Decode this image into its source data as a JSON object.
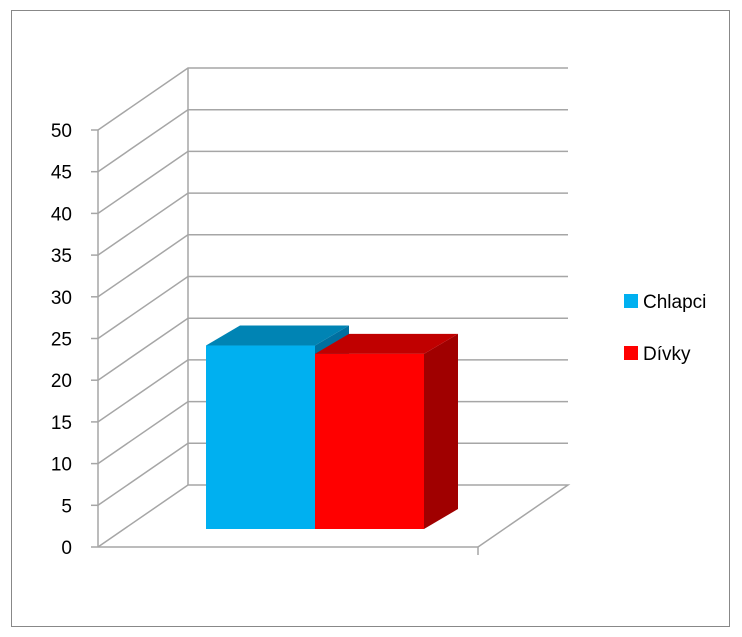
{
  "chart_data": {
    "type": "bar",
    "categories": [
      ""
    ],
    "series": [
      {
        "name": "Chlapci",
        "values": [
          22
        ]
      },
      {
        "name": "Dívky",
        "values": [
          21
        ]
      }
    ],
    "ylim": [
      0,
      50
    ],
    "yticks": [
      "0",
      "5",
      "10",
      "15",
      "20",
      "25",
      "30",
      "35",
      "40",
      "45",
      "50"
    ],
    "grid": true,
    "three_d": true,
    "legend_position": "right",
    "colors": {
      "Chlapci": {
        "front": "#00B0F0",
        "top": "#0084B4",
        "side": "#0070A0"
      },
      "Dívky": {
        "front": "#FF0000",
        "top": "#C00000",
        "side": "#A00000"
      },
      "grid": "#A6A6A6",
      "axis": "#A6A6A6"
    }
  }
}
